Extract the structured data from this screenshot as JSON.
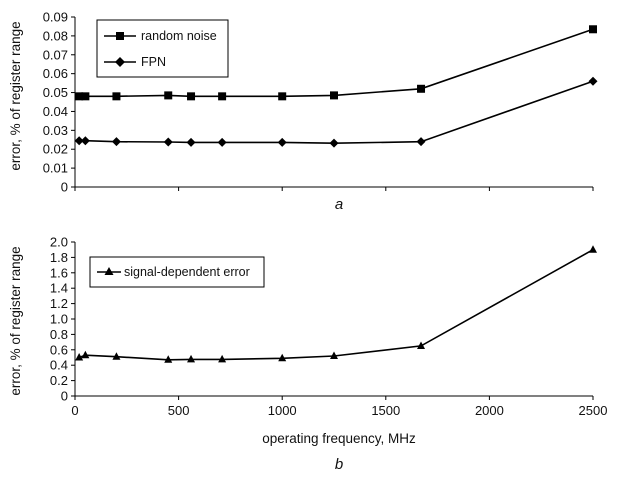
{
  "chart_data": [
    {
      "type": "line",
      "panel_label": "a",
      "ylabel": "error, % of register range",
      "xlabel": "",
      "xlim": [
        0,
        2500
      ],
      "ylim": [
        0,
        0.09
      ],
      "yticks": [
        "0",
        "0.01",
        "0.02",
        "0.03",
        "0.04",
        "0.05",
        "0.06",
        "0.07",
        "0.08",
        "0.09"
      ],
      "xticks": [],
      "legend": "top-left",
      "series": [
        {
          "name": "random noise",
          "marker": "square",
          "x": [
            20,
            50,
            200,
            450,
            560,
            710,
            1000,
            1250,
            1670,
            2500
          ],
          "y": [
            0.048,
            0.048,
            0.048,
            0.0485,
            0.048,
            0.048,
            0.048,
            0.0485,
            0.052,
            0.0835
          ]
        },
        {
          "name": "FPN",
          "marker": "diamond",
          "x": [
            20,
            50,
            200,
            450,
            560,
            710,
            1000,
            1250,
            1670,
            2500
          ],
          "y": [
            0.0245,
            0.0245,
            0.024,
            0.0238,
            0.0236,
            0.0236,
            0.0236,
            0.0232,
            0.024,
            0.056
          ]
        }
      ]
    },
    {
      "type": "line",
      "panel_label": "b",
      "ylabel": "error, % of register range",
      "xlabel": "operating frequency, MHz",
      "xlim": [
        0,
        2500
      ],
      "ylim": [
        0,
        2.0
      ],
      "yticks": [
        "0",
        "0.2",
        "0.4",
        "0.6",
        "0.8",
        "1.0",
        "1.2",
        "1.4",
        "1.6",
        "1.8",
        "2.0"
      ],
      "xticks": [
        "0",
        "500",
        "1000",
        "1500",
        "2000",
        "2500"
      ],
      "legend": "top-left",
      "series": [
        {
          "name": "signal-dependent error",
          "marker": "triangle",
          "x": [
            20,
            50,
            200,
            450,
            560,
            710,
            1000,
            1250,
            1670,
            2500
          ],
          "y": [
            0.5,
            0.53,
            0.51,
            0.47,
            0.475,
            0.475,
            0.49,
            0.52,
            0.65,
            1.9
          ]
        }
      ]
    }
  ]
}
